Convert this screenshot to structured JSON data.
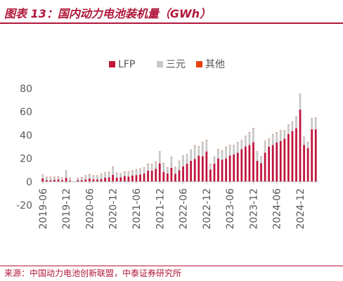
{
  "title": "图表 13：国内动力电池装机量（GWh）",
  "source": "来源：中国动力电池创新联盟，中泰证券研究所",
  "colors": {
    "LFP": "#c0143c",
    "三元": "#c8c8c8",
    "其他": "#e8420e",
    "accent": "#b0173a"
  },
  "chart_data": {
    "type": "bar",
    "stacked": true,
    "title": "",
    "xlabel": "",
    "ylabel": "",
    "ylim": [
      -20,
      80
    ],
    "yticks": [
      -20,
      0,
      20,
      40,
      60,
      80
    ],
    "grid": false,
    "legend": {
      "position": "top",
      "entries": [
        "LFP",
        "三元",
        "其他"
      ]
    },
    "x_tick_labels": [
      "2019-06",
      "2019-12",
      "2020-06",
      "2020-12",
      "2021-06",
      "2021-12",
      "2022-06",
      "2022-12",
      "2023-06",
      "2023-12",
      "2024-06",
      "2024-12"
    ],
    "categories": [
      "2019-06",
      "2019-07",
      "2019-08",
      "2019-09",
      "2019-10",
      "2019-11",
      "2019-12",
      "2020-01",
      "2020-02",
      "2020-03",
      "2020-04",
      "2020-05",
      "2020-06",
      "2020-07",
      "2020-08",
      "2020-09",
      "2020-10",
      "2020-11",
      "2020-12",
      "2021-01",
      "2021-02",
      "2021-03",
      "2021-04",
      "2021-05",
      "2021-06",
      "2021-07",
      "2021-08",
      "2021-09",
      "2021-10",
      "2021-11",
      "2021-12",
      "2022-01",
      "2022-02",
      "2022-03",
      "2022-04",
      "2022-05",
      "2022-06",
      "2022-07",
      "2022-08",
      "2022-09",
      "2022-10",
      "2022-11",
      "2022-12",
      "2023-01",
      "2023-02",
      "2023-03",
      "2023-04",
      "2023-05",
      "2023-06",
      "2023-07",
      "2023-08",
      "2023-09",
      "2023-10",
      "2023-11",
      "2023-12",
      "2024-01",
      "2024-02",
      "2024-03",
      "2024-04",
      "2024-05",
      "2024-06",
      "2024-07",
      "2024-08",
      "2024-09",
      "2024-10",
      "2024-11",
      "2024-12",
      "2025-01",
      "2025-02",
      "2025-03",
      "2025-04"
    ],
    "series": [
      {
        "name": "LFP",
        "values": [
          3.0,
          1.4,
          1.5,
          1.8,
          2.0,
          1.4,
          3.4,
          1.0,
          0.2,
          1.4,
          1.5,
          2.0,
          2.8,
          2.1,
          2.0,
          2.5,
          3.5,
          3.8,
          6.0,
          3.5,
          3.8,
          4.9,
          4.5,
          5.3,
          5.8,
          6.3,
          7.2,
          9.5,
          9.6,
          11.2,
          15.8,
          8.5,
          7.2,
          12.0,
          6.8,
          10.0,
          13.2,
          15.5,
          18.0,
          19.6,
          22.4,
          22.0,
          26.0,
          10.5,
          15.5,
          20.0,
          19.0,
          20.0,
          22.5,
          23.5,
          25.0,
          28.0,
          30.3,
          31.5,
          34.0,
          18.0,
          16.0,
          25.0,
          30.0,
          31.5,
          33.8,
          35.0,
          37.0,
          41.0,
          43.5,
          46.0,
          62.0,
          31.5,
          29.0,
          45.0,
          45.0
        ]
      },
      {
        "name": "三元",
        "values": [
          3.0,
          2.8,
          2.8,
          2.5,
          2.5,
          2.2,
          6.0,
          2.5,
          0.5,
          2.0,
          2.5,
          3.5,
          3.6,
          3.3,
          3.4,
          4.3,
          4.5,
          4.8,
          6.8,
          4.4,
          3.4,
          4.0,
          4.3,
          4.5,
          4.7,
          5.0,
          5.0,
          6.0,
          5.7,
          6.0,
          10.2,
          7.5,
          5.2,
          9.5,
          6.0,
          8.0,
          9.3,
          8.0,
          9.3,
          11.6,
          8.1,
          12.0,
          10.0,
          5.0,
          6.0,
          8.0,
          8.0,
          10.0,
          9.0,
          8.0,
          9.0,
          7.5,
          9.0,
          11.0,
          12.0,
          8.0,
          5.7,
          10.0,
          7.0,
          9.3,
          8.7,
          9.0,
          7.0,
          8.0,
          8.0,
          10.0,
          13.5,
          7.0,
          5.0,
          9.5,
          10.0
        ]
      },
      {
        "name": "其他",
        "values": [
          0.3,
          0.1,
          0.1,
          0.1,
          0.1,
          0.1,
          0.3,
          0.1,
          0.0,
          0.1,
          0.1,
          0.1,
          0.1,
          0.1,
          0.1,
          0.1,
          0.1,
          0.1,
          0.2,
          0.1,
          0.1,
          0.1,
          0.1,
          0.1,
          0.1,
          0.1,
          0.1,
          0.1,
          0.1,
          0.1,
          0.1,
          0.1,
          0.1,
          0.1,
          0.1,
          0.1,
          0.1,
          0.1,
          0.1,
          0.1,
          0.1,
          0.1,
          0.1,
          0.1,
          0.1,
          0.1,
          0.1,
          0.1,
          0.1,
          0.1,
          0.1,
          0.1,
          0.1,
          0.1,
          0.1,
          0.1,
          0.1,
          0.1,
          0.1,
          0.1,
          0.1,
          0.1,
          0.1,
          0.1,
          0.1,
          0.1,
          0.1,
          0.1,
          0.1,
          0.1,
          0.1
        ]
      }
    ]
  }
}
